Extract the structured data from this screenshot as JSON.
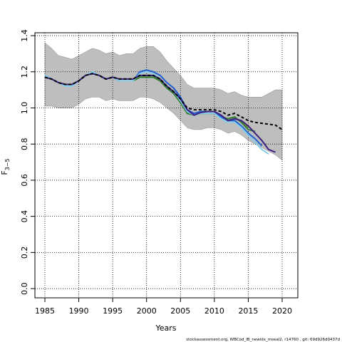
{
  "chart_data": {
    "type": "line",
    "xlabel": "Years",
    "ylabel": "F",
    "ylabel_sub": "3−5",
    "footer": "stockassessment.org, WBCod_IB_newidx_mseal2, r14760 , git: 69d926d0437d",
    "x": [
      1985,
      1986,
      1987,
      1988,
      1989,
      1990,
      1991,
      1992,
      1993,
      1994,
      1995,
      1996,
      1997,
      1998,
      1999,
      2000,
      2001,
      2002,
      2003,
      2004,
      2005,
      2006,
      2007,
      2008,
      2009,
      2010,
      2011,
      2012,
      2013,
      2014,
      2015,
      2016,
      2017,
      2018,
      2019,
      2020
    ],
    "xlim": [
      1983.53,
      2022.31
    ],
    "ylim": [
      -0.051,
      1.416
    ],
    "xticks": [
      1985,
      1990,
      1995,
      2000,
      2005,
      2010,
      2015,
      2020
    ],
    "yticks": [
      {
        "value": 0,
        "label": "0.0"
      },
      {
        "value": 0.2,
        "label": "0.2"
      },
      {
        "value": 0.4,
        "label": "0.4"
      },
      {
        "value": 0.6,
        "label": "0.6"
      },
      {
        "value": 0.8,
        "label": "0.8"
      },
      {
        "value": 1,
        "label": "1.0"
      },
      {
        "value": 1.2,
        "label": "1.2"
      },
      {
        "value": 1.4,
        "label": "1.4"
      }
    ],
    "grid": true,
    "band": {
      "color": "#bebebe",
      "upper": [
        1.36,
        1.33,
        1.29,
        1.28,
        1.27,
        1.29,
        1.31,
        1.33,
        1.32,
        1.3,
        1.31,
        1.29,
        1.3,
        1.3,
        1.33,
        1.34,
        1.34,
        1.31,
        1.26,
        1.22,
        1.18,
        1.13,
        1.11,
        1.11,
        1.11,
        1.11,
        1.1,
        1.08,
        1.09,
        1.07,
        1.06,
        1.06,
        1.06,
        1.08,
        1.1,
        1.1
      ],
      "lower": [
        1.01,
        1.01,
        1.0,
        1.0,
        1.0,
        1.02,
        1.05,
        1.06,
        1.06,
        1.04,
        1.05,
        1.04,
        1.04,
        1.04,
        1.06,
        1.06,
        1.05,
        1.03,
        1.0,
        0.97,
        0.93,
        0.89,
        0.88,
        0.88,
        0.89,
        0.89,
        0.88,
        0.86,
        0.87,
        0.85,
        0.82,
        0.8,
        0.78,
        0.76,
        0.74,
        0.71
      ]
    },
    "series": [
      {
        "color": "#7f8f1f",
        "values": [
          1.17,
          1.16,
          1.14,
          1.13,
          1.13,
          1.15,
          1.18,
          1.19,
          1.18,
          1.16,
          1.17,
          1.15,
          1.15,
          1.15,
          1.17,
          1.17,
          1.17,
          1.15,
          1.11,
          1.08,
          1.03,
          0.97,
          0.96,
          0.97,
          0.97,
          0.97,
          0.95,
          0.94,
          0.95,
          0.92,
          0.89,
          null,
          null,
          null,
          null,
          null
        ]
      },
      {
        "color": "#2e7d32",
        "values": [
          1.17,
          1.16,
          1.14,
          1.13,
          1.13,
          1.15,
          1.18,
          1.19,
          1.18,
          1.16,
          1.17,
          1.15,
          1.15,
          1.15,
          1.17,
          1.17,
          1.17,
          1.15,
          1.11,
          1.08,
          1.03,
          0.97,
          0.96,
          0.97,
          0.97,
          0.97,
          0.95,
          0.94,
          0.95,
          0.92,
          0.88,
          0.87,
          null,
          null,
          null,
          null
        ]
      },
      {
        "color": "#1f5fd0",
        "values": [
          1.18,
          1.16,
          1.14,
          1.13,
          1.13,
          1.15,
          1.18,
          1.19,
          1.18,
          1.16,
          1.17,
          1.15,
          1.15,
          1.15,
          1.2,
          1.21,
          1.2,
          1.18,
          1.14,
          1.11,
          1.06,
          0.99,
          0.97,
          0.98,
          0.98,
          0.98,
          0.95,
          0.93,
          0.93,
          0.9,
          0.86,
          0.83,
          0.79,
          null,
          null,
          null
        ]
      },
      {
        "color": "#87ceeb",
        "values": [
          1.18,
          1.16,
          1.14,
          1.12,
          1.12,
          1.15,
          1.18,
          1.2,
          1.18,
          1.16,
          1.17,
          1.15,
          1.15,
          1.15,
          1.19,
          1.2,
          1.19,
          1.16,
          1.12,
          1.09,
          1.04,
          0.98,
          0.96,
          0.97,
          0.97,
          0.97,
          0.94,
          0.92,
          0.92,
          0.89,
          0.85,
          0.81,
          0.77,
          0.745,
          null,
          null
        ]
      },
      {
        "color": "#3f1f7f",
        "values": [
          1.17,
          1.16,
          1.14,
          1.13,
          1.13,
          1.15,
          1.18,
          1.19,
          1.18,
          1.16,
          1.17,
          1.16,
          1.16,
          1.16,
          1.18,
          1.18,
          1.18,
          1.16,
          1.12,
          1.09,
          1.05,
          0.99,
          0.96,
          0.975,
          0.98,
          0.98,
          0.96,
          0.93,
          0.94,
          0.93,
          0.9,
          0.86,
          0.82,
          0.77,
          0.755,
          null
        ]
      },
      {
        "color": "#000000",
        "dashed": true,
        "values": [
          1.17,
          1.16,
          1.14,
          1.13,
          1.13,
          1.15,
          1.18,
          1.19,
          1.18,
          1.16,
          1.17,
          1.16,
          1.16,
          1.16,
          1.18,
          1.18,
          1.18,
          1.16,
          1.12,
          1.09,
          1.05,
          1.0,
          0.99,
          0.99,
          0.99,
          0.99,
          0.98,
          0.96,
          0.97,
          0.95,
          0.93,
          0.92,
          0.915,
          0.91,
          0.905,
          0.88
        ]
      }
    ]
  }
}
